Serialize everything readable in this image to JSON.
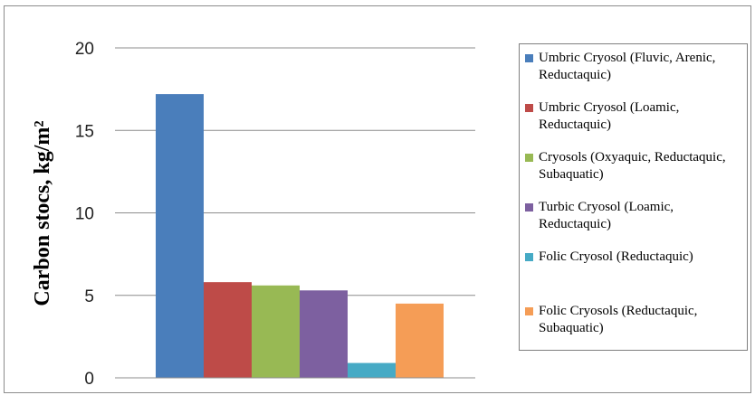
{
  "chart_data": {
    "type": "bar",
    "title": "",
    "xlabel": "",
    "ylabel": "Carbon stocs, kg/m²",
    "ylim": [
      0,
      20
    ],
    "yticks": [
      0,
      5,
      10,
      15,
      20
    ],
    "grid": true,
    "legend_position": "right",
    "series": [
      {
        "name": "Umbric Cryosol (Fluvic, Arenic, Reductaquic)",
        "value": 17.2,
        "color": "#4a7ebb"
      },
      {
        "name": "Umbric Cryosol (Loamic, Reductaquic)",
        "value": 5.8,
        "color": "#be4b48"
      },
      {
        "name": "Cryosols (Oxyaquic, Reductaquic, Subaquatic)",
        "value": 5.6,
        "color": "#98b954"
      },
      {
        "name": "Turbic Cryosol (Loamic, Reductaquic)",
        "value": 5.3,
        "color": "#7d60a0"
      },
      {
        "name": "Folic Cryosol (Reductaquic)",
        "value": 0.9,
        "color": "#46aac5"
      },
      {
        "name": "Folic Cryosols (Reductaquic, Subaquatic)",
        "value": 4.5,
        "color": "#f59d56"
      }
    ]
  }
}
